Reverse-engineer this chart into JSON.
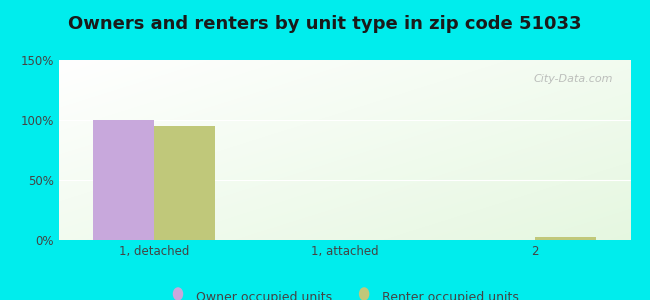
{
  "title": "Owners and renters by unit type in zip code 51033",
  "categories": [
    "1, detached",
    "1, attached",
    "2"
  ],
  "owner_values": [
    100,
    0,
    0
  ],
  "renter_values": [
    95,
    0,
    2.5
  ],
  "owner_color": "#c8a8dc",
  "renter_color": "#c0c87a",
  "ylim": [
    0,
    150
  ],
  "yticks": [
    0,
    50,
    100,
    150
  ],
  "ytick_labels": [
    "0%",
    "50%",
    "100%",
    "150%"
  ],
  "bar_width": 0.32,
  "background_outer": "#00EDED",
  "title_fontsize": 13,
  "legend_labels": [
    "Owner occupied units",
    "Renter occupied units"
  ],
  "watermark": "City-Data.com"
}
